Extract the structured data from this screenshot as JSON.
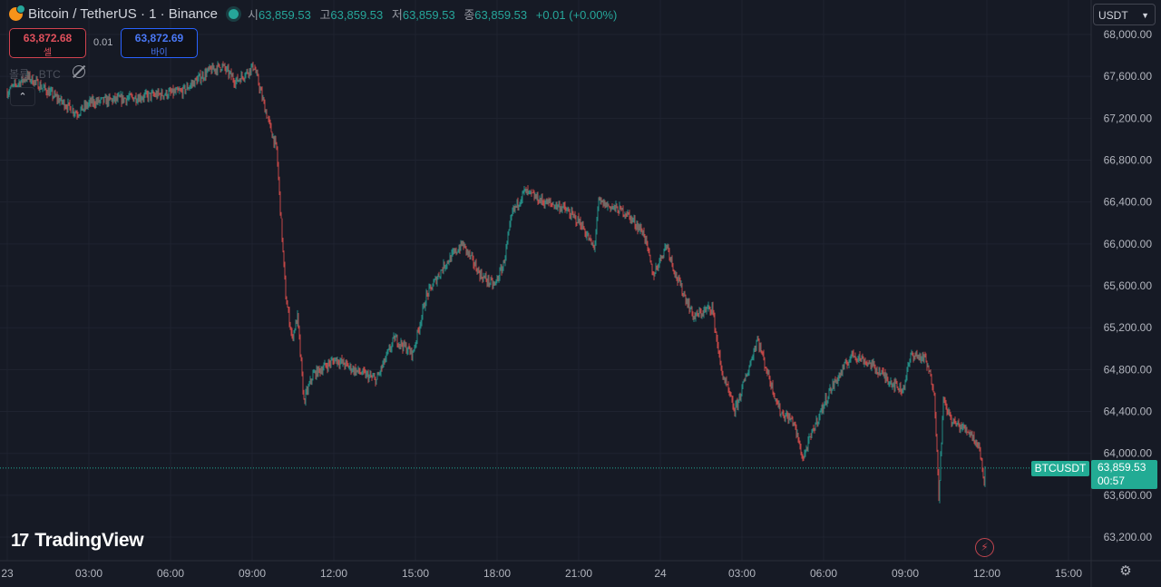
{
  "header": {
    "title": "Bitcoin / TetherUS · 1 · Binance",
    "open_label": "시",
    "open": "63,859.53",
    "high_label": "고",
    "high": "63,859.53",
    "low_label": "저",
    "low": "63,859.53",
    "close_label": "종",
    "close": "63,859.53",
    "change": "+0.01 (+0.00%)"
  },
  "trade": {
    "sell_price": "63,872.68",
    "sell_label": "셀",
    "spread": "0.01",
    "buy_price": "63,872.69",
    "buy_label": "바이"
  },
  "volume_label": "볼륨 · BTC",
  "currency_select": "USDT",
  "last_price": {
    "symbol": "BTCUSDT",
    "price": "63,859.53",
    "countdown": "00:57"
  },
  "brand": "TradingView",
  "colors": {
    "background": "#161a25",
    "up": "#26a69a",
    "down": "#ef5350",
    "last_price": "#22ab94"
  },
  "icons": {
    "collapse": "chevron-up-icon",
    "visibility": "eye-off-icon",
    "bolt": "lightning-icon",
    "settings": "gear-icon"
  },
  "chart_data": {
    "type": "candlestick",
    "interval": "1 minute",
    "y_ticks": [
      "68,000.00",
      "67,600.00",
      "67,200.00",
      "66,800.00",
      "66,400.00",
      "66,000.00",
      "65,600.00",
      "65,200.00",
      "64,800.00",
      "64,400.00",
      "64,000.00",
      "63,600.00",
      "63,200.00"
    ],
    "ylim": [
      63200,
      68000
    ],
    "x_ticks": [
      "23",
      "03:00",
      "06:00",
      "09:00",
      "12:00",
      "15:00",
      "18:00",
      "21:00",
      "24",
      "03:00",
      "06:00",
      "09:00",
      "12:00",
      "15:00"
    ],
    "grid": true,
    "price_path": [
      [
        "23 00:00",
        67450
      ],
      [
        "23 00:44",
        67600
      ],
      [
        "23 02:34",
        67250
      ],
      [
        "23 03:04",
        67350
      ],
      [
        "23 04:44",
        67400
      ],
      [
        "23 06:24",
        67450
      ],
      [
        "23 07:24",
        67650
      ],
      [
        "23 07:54",
        67700
      ],
      [
        "23 08:24",
        67550
      ],
      [
        "23 09:04",
        67700
      ],
      [
        "23 09:34",
        67200
      ],
      [
        "23 09:54",
        66900
      ],
      [
        "23 10:04",
        66200
      ],
      [
        "23 10:14",
        65500
      ],
      [
        "23 10:28",
        65100
      ],
      [
        "23 10:40",
        65300
      ],
      [
        "23 10:54",
        64500
      ],
      [
        "23 11:14",
        64750
      ],
      [
        "23 12:04",
        64900
      ],
      [
        "23 12:44",
        64800
      ],
      [
        "23 13:34",
        64700
      ],
      [
        "23 14:14",
        65100
      ],
      [
        "23 14:54",
        64950
      ],
      [
        "23 15:24",
        65500
      ],
      [
        "23 16:04",
        65800
      ],
      [
        "23 16:44",
        66000
      ],
      [
        "23 17:24",
        65700
      ],
      [
        "23 17:54",
        65600
      ],
      [
        "23 18:14",
        65800
      ],
      [
        "23 18:34",
        66300
      ],
      [
        "23 19:00",
        66500
      ],
      [
        "23 19:44",
        66400
      ],
      [
        "23 20:24",
        66350
      ],
      [
        "23 21:04",
        66200
      ],
      [
        "23 21:34",
        65950
      ],
      [
        "23 21:44",
        66400
      ],
      [
        "23 22:44",
        66300
      ],
      [
        "23 23:24",
        66100
      ],
      [
        "23 23:44",
        65700
      ],
      [
        "24 00:14",
        66000
      ],
      [
        "24 00:34",
        65700
      ],
      [
        "24 01:14",
        65300
      ],
      [
        "24 01:54",
        65400
      ],
      [
        "24 02:14",
        64800
      ],
      [
        "24 02:44",
        64400
      ],
      [
        "24 03:14",
        64800
      ],
      [
        "24 03:34",
        65100
      ],
      [
        "24 03:54",
        64800
      ],
      [
        "24 04:24",
        64400
      ],
      [
        "24 04:54",
        64300
      ],
      [
        "24 05:14",
        63950
      ],
      [
        "24 05:44",
        64300
      ],
      [
        "24 06:14",
        64600
      ],
      [
        "24 07:04",
        64950
      ],
      [
        "24 07:44",
        64850
      ],
      [
        "24 08:24",
        64700
      ],
      [
        "24 08:54",
        64600
      ],
      [
        "24 09:14",
        64950
      ],
      [
        "24 09:44",
        64900
      ],
      [
        "24 10:04",
        64600
      ],
      [
        "24 10:14",
        63600
      ],
      [
        "24 10:24",
        64500
      ],
      [
        "24 10:44",
        64300
      ],
      [
        "24 11:24",
        64200
      ],
      [
        "24 11:44",
        64050
      ],
      [
        "24 11:54",
        63700
      ],
      [
        "24 11:56",
        63859.53
      ]
    ],
    "last": 63859.53
  }
}
